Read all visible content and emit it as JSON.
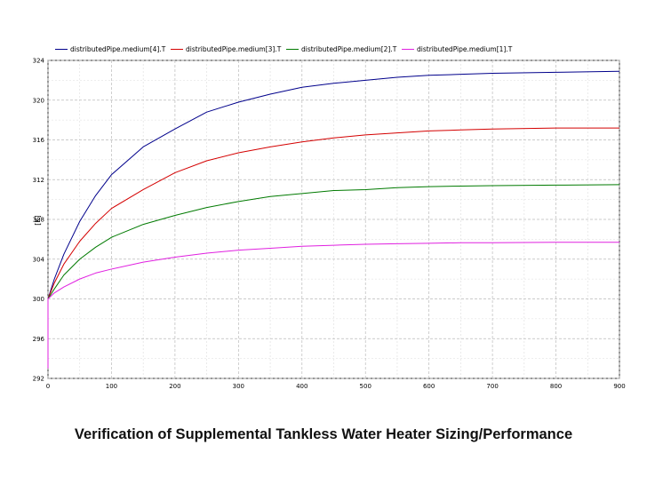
{
  "chart_data": {
    "type": "line",
    "title": "",
    "xlabel": "",
    "ylabel": "[K]",
    "xlim": [
      0,
      900
    ],
    "ylim": [
      292,
      324
    ],
    "xticks": [
      0,
      100,
      200,
      300,
      400,
      500,
      600,
      700,
      800,
      900
    ],
    "yticks": [
      292,
      296,
      300,
      304,
      308,
      312,
      316,
      320,
      324
    ],
    "grid": true,
    "legend_position": "top",
    "series": [
      {
        "name": "distributedPipe.medium[4].T",
        "color": "#00008b",
        "x": [
          0,
          10,
          25,
          50,
          75,
          100,
          150,
          200,
          250,
          300,
          350,
          400,
          450,
          500,
          550,
          600,
          650,
          700,
          800,
          900
        ],
        "y": [
          300.0,
          302.0,
          304.5,
          307.8,
          310.4,
          312.5,
          315.3,
          317.1,
          318.8,
          319.8,
          320.6,
          321.3,
          321.7,
          322.0,
          322.3,
          322.5,
          322.6,
          322.7,
          322.8,
          322.9
        ]
      },
      {
        "name": "distributedPipe.medium[3].T",
        "color": "#d40000",
        "x": [
          0,
          10,
          25,
          50,
          75,
          100,
          150,
          200,
          250,
          300,
          350,
          400,
          450,
          500,
          550,
          600,
          650,
          700,
          800,
          900
        ],
        "y": [
          300.0,
          301.6,
          303.5,
          305.8,
          307.6,
          309.1,
          311.0,
          312.7,
          313.9,
          314.7,
          315.3,
          315.8,
          316.2,
          316.5,
          316.7,
          316.9,
          317.0,
          317.1,
          317.2,
          317.2
        ]
      },
      {
        "name": "distributedPipe.medium[2].T",
        "color": "#007a00",
        "x": [
          0,
          10,
          25,
          50,
          75,
          100,
          150,
          200,
          250,
          300,
          350,
          400,
          450,
          500,
          550,
          600,
          650,
          700,
          800,
          900
        ],
        "y": [
          300.0,
          301.0,
          302.4,
          304.0,
          305.2,
          306.2,
          307.5,
          308.4,
          309.2,
          309.8,
          310.3,
          310.6,
          310.9,
          311.0,
          311.2,
          311.3,
          311.35,
          311.4,
          311.45,
          311.5
        ]
      },
      {
        "name": "distributedPipe.medium[1].T",
        "color": "#e020e0",
        "x": [
          0,
          10,
          25,
          50,
          75,
          100,
          150,
          200,
          250,
          300,
          350,
          400,
          450,
          500,
          550,
          600,
          650,
          700,
          800,
          900
        ],
        "y": [
          300.0,
          300.6,
          301.2,
          302.0,
          302.6,
          303.0,
          303.7,
          304.2,
          304.6,
          304.9,
          305.1,
          305.3,
          305.4,
          305.5,
          305.55,
          305.6,
          305.65,
          305.65,
          305.7,
          305.7
        ]
      }
    ]
  },
  "caption": "Verification of Supplemental Tankless Water Heater Sizing/Performance"
}
